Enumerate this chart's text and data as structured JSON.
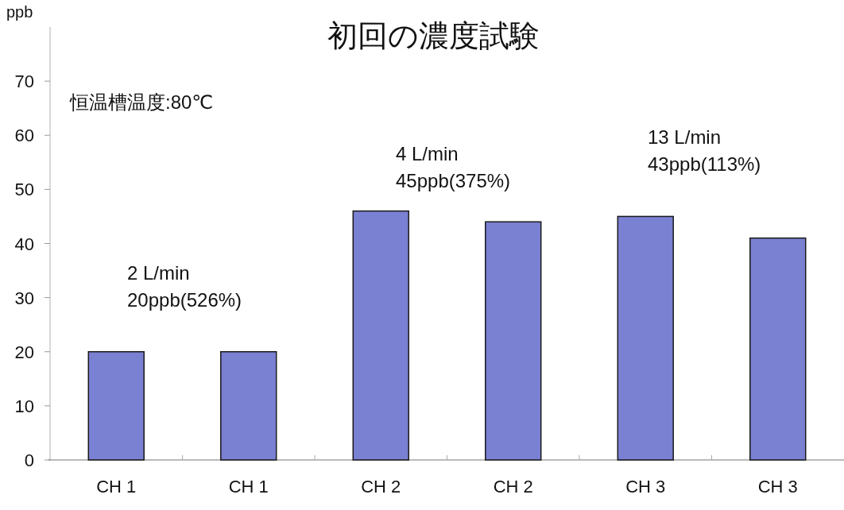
{
  "chart_data": {
    "type": "bar",
    "title": "初回の濃度試験",
    "ylabel": "ppb",
    "annotations": [
      "恒温槽温度:80℃",
      "2 L/min\n20ppb(526%)",
      "4 L/min\n45ppb(375%)",
      "13 L/min\n43ppb(113%)"
    ],
    "categories": [
      "CH 1",
      "CH 1",
      "CH 2",
      "CH 2",
      "CH 3",
      "CH 3"
    ],
    "values": [
      20,
      20,
      46,
      44,
      45,
      41
    ],
    "color": "#7a80d2",
    "ylim": [
      0,
      80
    ],
    "yticks": [
      0,
      10,
      20,
      30,
      40,
      50,
      60,
      70
    ]
  }
}
